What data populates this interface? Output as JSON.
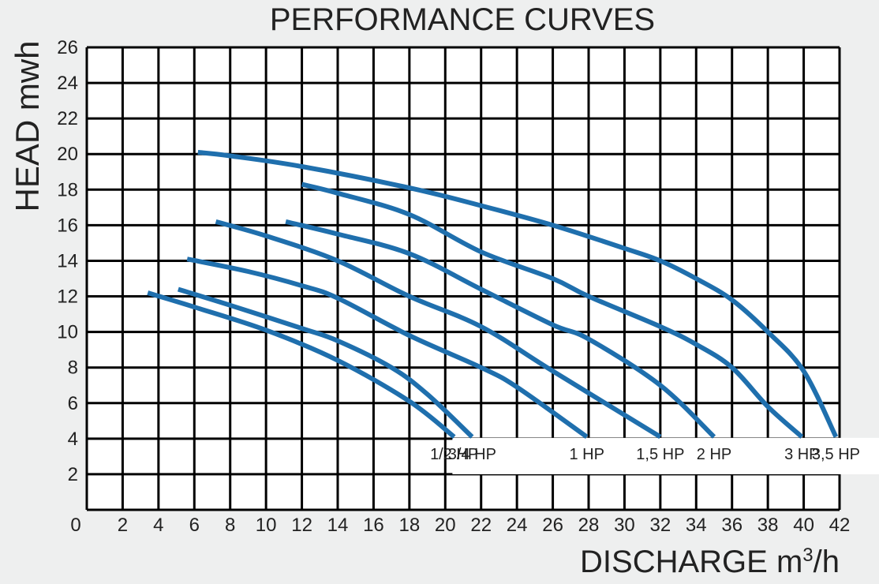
{
  "chart_data": {
    "type": "line",
    "title": "PERFORMANCE CURVES",
    "xlabel": "DISCHARGE m",
    "xlabel_sup": "3",
    "xlabel_tail": "/h",
    "ylabel": "HEAD mwh",
    "xlim": [
      0,
      42
    ],
    "ylim": [
      0,
      26
    ],
    "x_ticks": [
      0,
      2,
      4,
      6,
      8,
      10,
      12,
      14,
      16,
      18,
      20,
      22,
      24,
      26,
      28,
      30,
      32,
      34,
      36,
      38,
      40,
      42
    ],
    "y_ticks": [
      2,
      4,
      6,
      8,
      10,
      12,
      14,
      16,
      18,
      20,
      22,
      24,
      26
    ],
    "grid": true,
    "line_color": "#1f6fad",
    "grid_color": "#000000",
    "series": [
      {
        "name": "1/2 HP",
        "points": [
          [
            3.4,
            12.2
          ],
          [
            6,
            11.4
          ],
          [
            10,
            10.1
          ],
          [
            14,
            8.4
          ],
          [
            18,
            6.1
          ],
          [
            20.5,
            4.1
          ]
        ]
      },
      {
        "name": "3/4 HP",
        "points": [
          [
            5.1,
            12.4
          ],
          [
            8,
            11.5
          ],
          [
            12,
            10.2
          ],
          [
            14,
            9.5
          ],
          [
            17,
            8
          ],
          [
            19,
            6.5
          ],
          [
            21.5,
            4.1
          ]
        ]
      },
      {
        "name": "1 HP",
        "points": [
          [
            5.6,
            14.1
          ],
          [
            9,
            13.4
          ],
          [
            12,
            12.6
          ],
          [
            14,
            11.9
          ],
          [
            18,
            9.8
          ],
          [
            22,
            8
          ],
          [
            24,
            6.9
          ],
          [
            27.9,
            4.1
          ]
        ]
      },
      {
        "name": "1,5 HP",
        "points": [
          [
            7.2,
            16.2
          ],
          [
            10,
            15.4
          ],
          [
            14,
            14
          ],
          [
            18,
            12
          ],
          [
            22,
            10.3
          ],
          [
            26,
            7.8
          ],
          [
            32,
            4.1
          ]
        ]
      },
      {
        "name": "2 HP",
        "points": [
          [
            11.1,
            16.2
          ],
          [
            14,
            15.5
          ],
          [
            18,
            14.4
          ],
          [
            22,
            12.4
          ],
          [
            26,
            10.4
          ],
          [
            28,
            9.6
          ],
          [
            32,
            7
          ],
          [
            35,
            4.1
          ]
        ]
      },
      {
        "name": "3 HP",
        "points": [
          [
            12,
            18.3
          ],
          [
            14,
            17.8
          ],
          [
            18,
            16.6
          ],
          [
            22,
            14.5
          ],
          [
            26,
            13
          ],
          [
            28,
            12
          ],
          [
            32,
            10.3
          ],
          [
            34,
            9.3
          ],
          [
            36,
            8
          ],
          [
            38,
            5.8
          ],
          [
            39.9,
            4.1
          ]
        ]
      },
      {
        "name": "3,5 HP",
        "points": [
          [
            6.2,
            20.1
          ],
          [
            8,
            19.9
          ],
          [
            12,
            19.3
          ],
          [
            18,
            18.1
          ],
          [
            22,
            17.1
          ],
          [
            26,
            16
          ],
          [
            30,
            14.7
          ],
          [
            32,
            14
          ],
          [
            34,
            13
          ],
          [
            36,
            11.8
          ],
          [
            38,
            10
          ],
          [
            40,
            7.8
          ],
          [
            41.8,
            4.1
          ]
        ]
      }
    ]
  }
}
